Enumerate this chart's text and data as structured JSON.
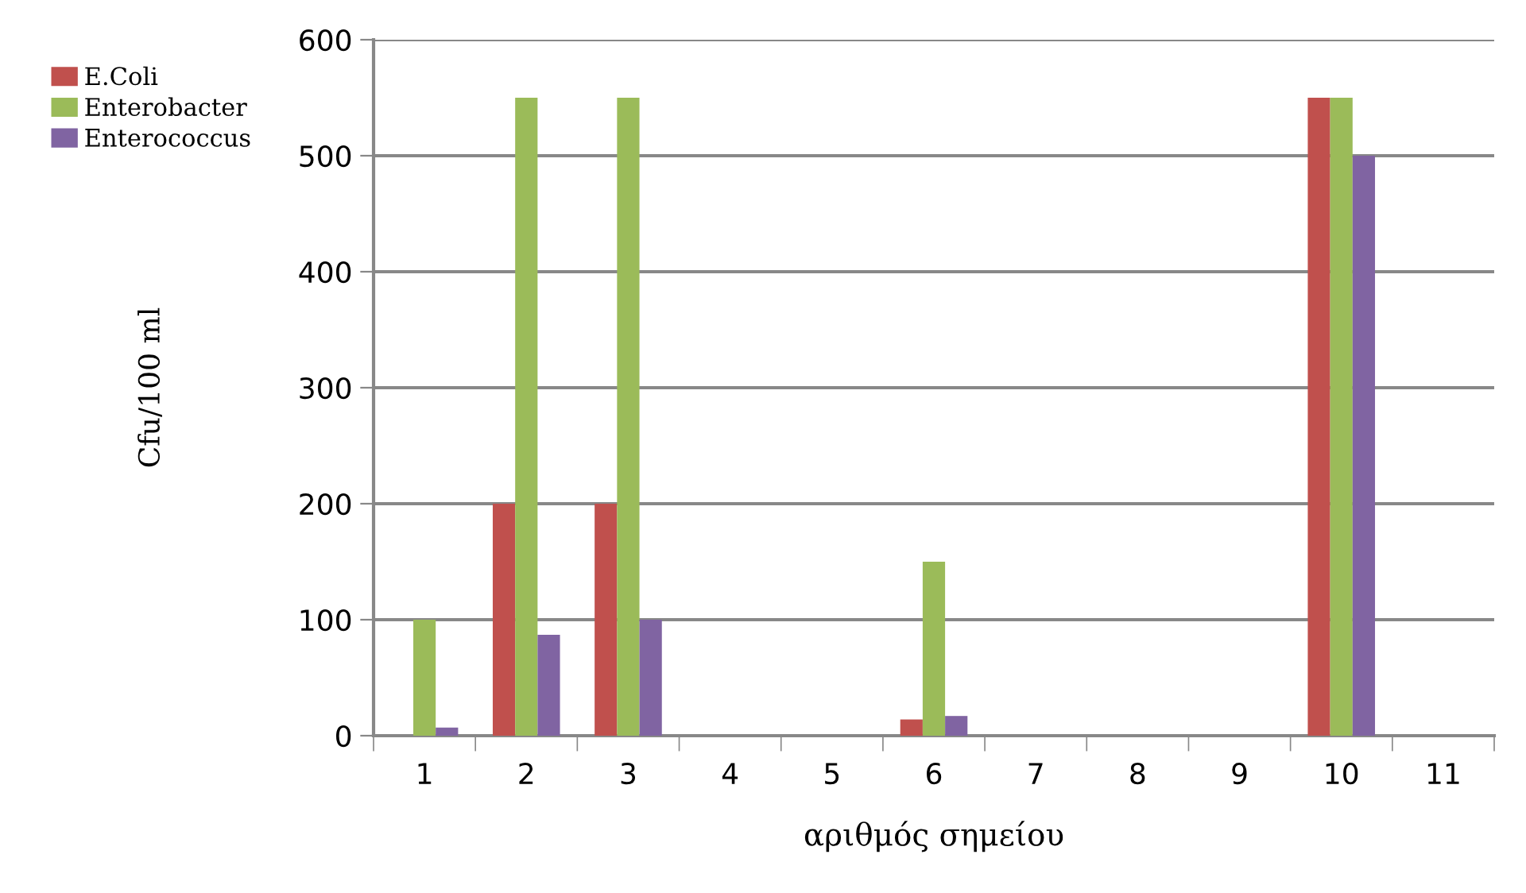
{
  "chart_data": {
    "type": "bar",
    "xlabel": "αριθμός σημείου",
    "ylabel": "Cfu/100 ml",
    "categories": [
      "1",
      "2",
      "3",
      "4",
      "5",
      "6",
      "7",
      "8",
      "9",
      "10",
      "11"
    ],
    "series": [
      {
        "name": "E.Coli",
        "color": "#c0504d",
        "values": [
          0,
          200,
          200,
          0,
          0,
          14,
          0,
          0,
          0,
          550,
          0
        ]
      },
      {
        "name": "Enterobacter",
        "color": "#9bbb59",
        "values": [
          100,
          550,
          550,
          0,
          0,
          150,
          0,
          0,
          0,
          550,
          0
        ]
      },
      {
        "name": "Enterococcus",
        "color": "#8064a2",
        "values": [
          7,
          87,
          100,
          0,
          0,
          17,
          0,
          0,
          0,
          500,
          0
        ]
      }
    ],
    "ylim": [
      0,
      600
    ],
    "yticks": [
      0,
      100,
      200,
      300,
      400,
      500,
      600
    ],
    "grid": "y",
    "legend": "left"
  }
}
